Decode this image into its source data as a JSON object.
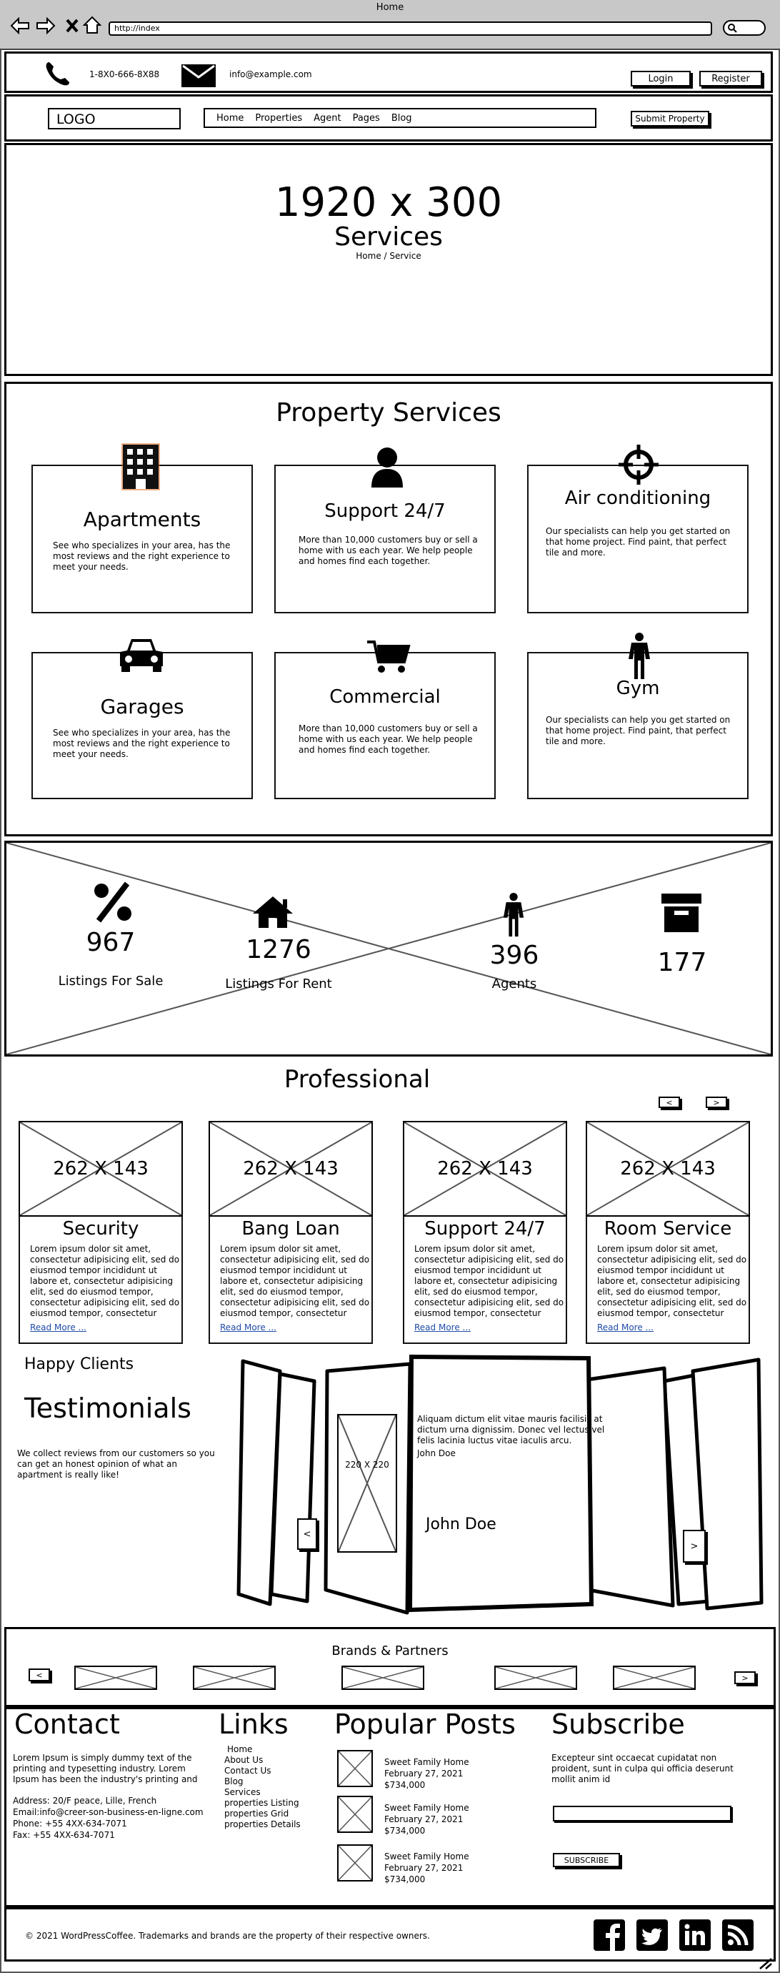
{
  "browser": {
    "title": "Home",
    "url": "http://index"
  },
  "topbar": {
    "phone": "1-8X0-666-8X88",
    "email": "info@example.com",
    "login": "Login",
    "register": "Register"
  },
  "nav": {
    "logo": "LOGO",
    "items": [
      "Home",
      "Properties",
      "Agent",
      "Pages",
      "Blog"
    ],
    "submit": "Submit Property"
  },
  "hero": {
    "size": "1920 x 300",
    "title": "Services",
    "breadcrumb": "Home / Service"
  },
  "services": {
    "heading": "Property Services",
    "cards": [
      {
        "title": "Apartments",
        "text": "See who specializes in your area, has the most reviews and the right experience to meet your needs.",
        "icon": "building-icon"
      },
      {
        "title": "Support 24/7",
        "text": "More than 10,000 customers buy or sell a home with us each year. We help people and homes find each together.",
        "icon": "user-icon"
      },
      {
        "title": "Air conditioning",
        "text": "Our specialists can help you get started on that home project. Find paint, that perfect tile and more.",
        "icon": "crosshair-icon"
      },
      {
        "title": "Garages",
        "text": "See who specializes in your area, has the most reviews and the right experience to meet your needs.",
        "icon": "car-icon"
      },
      {
        "title": "Commercial",
        "text": "More than 10,000 customers buy or sell a home with us each year. We help people and homes find each together.",
        "icon": "cart-icon"
      },
      {
        "title": "Gym",
        "text": "Our specialists can help you get started on that home project. Find paint, that perfect tile and more.",
        "icon": "person-icon"
      }
    ]
  },
  "stats": [
    {
      "value": "967",
      "label": "Listings For Sale",
      "icon": "percent-icon"
    },
    {
      "value": "1276",
      "label": "Listings For Rent",
      "icon": "home-icon"
    },
    {
      "value": "396",
      "label": "Agents",
      "icon": "person-icon"
    },
    {
      "value": "177",
      "label": "",
      "icon": "archive-icon"
    }
  ],
  "professional": {
    "heading": "Professional",
    "prev": "<",
    "next": ">",
    "image_label": "262 X 143",
    "cards": [
      {
        "title": "Security",
        "text": "Lorem ipsum dolor sit amet, consectetur adipisicing elit, sed do eiusmod tempor incididunt ut labore et, consectetur adipisicing elit, sed do eiusmod tempor, consectetur adipisicing elit, sed do eiusmod tempor, consectetur",
        "link": "Read More ..."
      },
      {
        "title": "Bang Loan",
        "text": "Lorem ipsum dolor sit amet, consectetur adipisicing elit, sed do eiusmod tempor incididunt ut labore et, consectetur adipisicing elit, sed do eiusmod tempor, consectetur adipisicing elit, sed do eiusmod tempor, consectetur",
        "link": "Read More ..."
      },
      {
        "title": "Support 24/7",
        "text": "Lorem ipsum dolor sit amet, consectetur adipisicing elit, sed do eiusmod tempor incididunt ut labore et, consectetur adipisicing elit, sed do eiusmod tempor, consectetur adipisicing elit, sed do eiusmod tempor, consectetur",
        "link": "Read More ..."
      },
      {
        "title": "Room Service",
        "text": "Lorem ipsum dolor sit amet, consectetur adipisicing elit, sed do eiusmod tempor incididunt ut labore et, consectetur adipisicing elit, sed do eiusmod tempor, consectetur adipisicing elit, sed do eiusmod tempor, consectetur",
        "link": "Read More ..."
      }
    ]
  },
  "testimonials": {
    "kicker": "Happy Clients",
    "heading": "Testimonials",
    "intro": "We collect reviews from our customers so you can get an honest opinion of what an apartment is really like!",
    "quote": "Aliquam dictum elit vitae mauris facilisis at dictum urna dignissim. Donec vel lectus vel felis lacinia luctus vitae iaculis arcu.",
    "author_small": "John Doe",
    "author": "John Doe",
    "image_label": "220 X 220",
    "prev": "<",
    "next": ">"
  },
  "brands": {
    "heading": "Brands & Partners",
    "prev": "<",
    "next": ">"
  },
  "footer": {
    "contact": {
      "heading": "Contact",
      "text": "Lorem Ipsum is simply dummy text of the printing and typesetting industry. Lorem Ipsum has been the industry's printing and",
      "address": "Address: 20/F peace, Lille, French",
      "email": "Email:info@creer-son-business-en-ligne.com",
      "phone": "Phone: +55 4XX-634-7071",
      "fax": "Fax: +55 4XX-634-7071"
    },
    "links": {
      "heading": "Links",
      "items": [
        "Home",
        "About Us",
        "Contact Us",
        "Blog",
        "Services",
        "properties Listing",
        "properties Grid",
        "properties Details"
      ]
    },
    "posts": {
      "heading": "Popular Posts",
      "items": [
        {
          "title": "Sweet Family Home",
          "date": "February 27, 2021",
          "price": "$734,000"
        },
        {
          "title": "Sweet Family Home",
          "date": "February 27, 2021",
          "price": "$734,000"
        },
        {
          "title": "Sweet Family Home",
          "date": "February 27, 2021",
          "price": "$734,000"
        }
      ]
    },
    "subscribe": {
      "heading": "Subscribe",
      "text": "Excepteur sint occaecat cupidatat non proident, sunt in culpa qui officia deserunt mollit anim id",
      "button": "SUBSCRIBE"
    },
    "copyright": "© 2021 WordPressCoffee. Trademarks and brands are the property of their respective owners."
  }
}
